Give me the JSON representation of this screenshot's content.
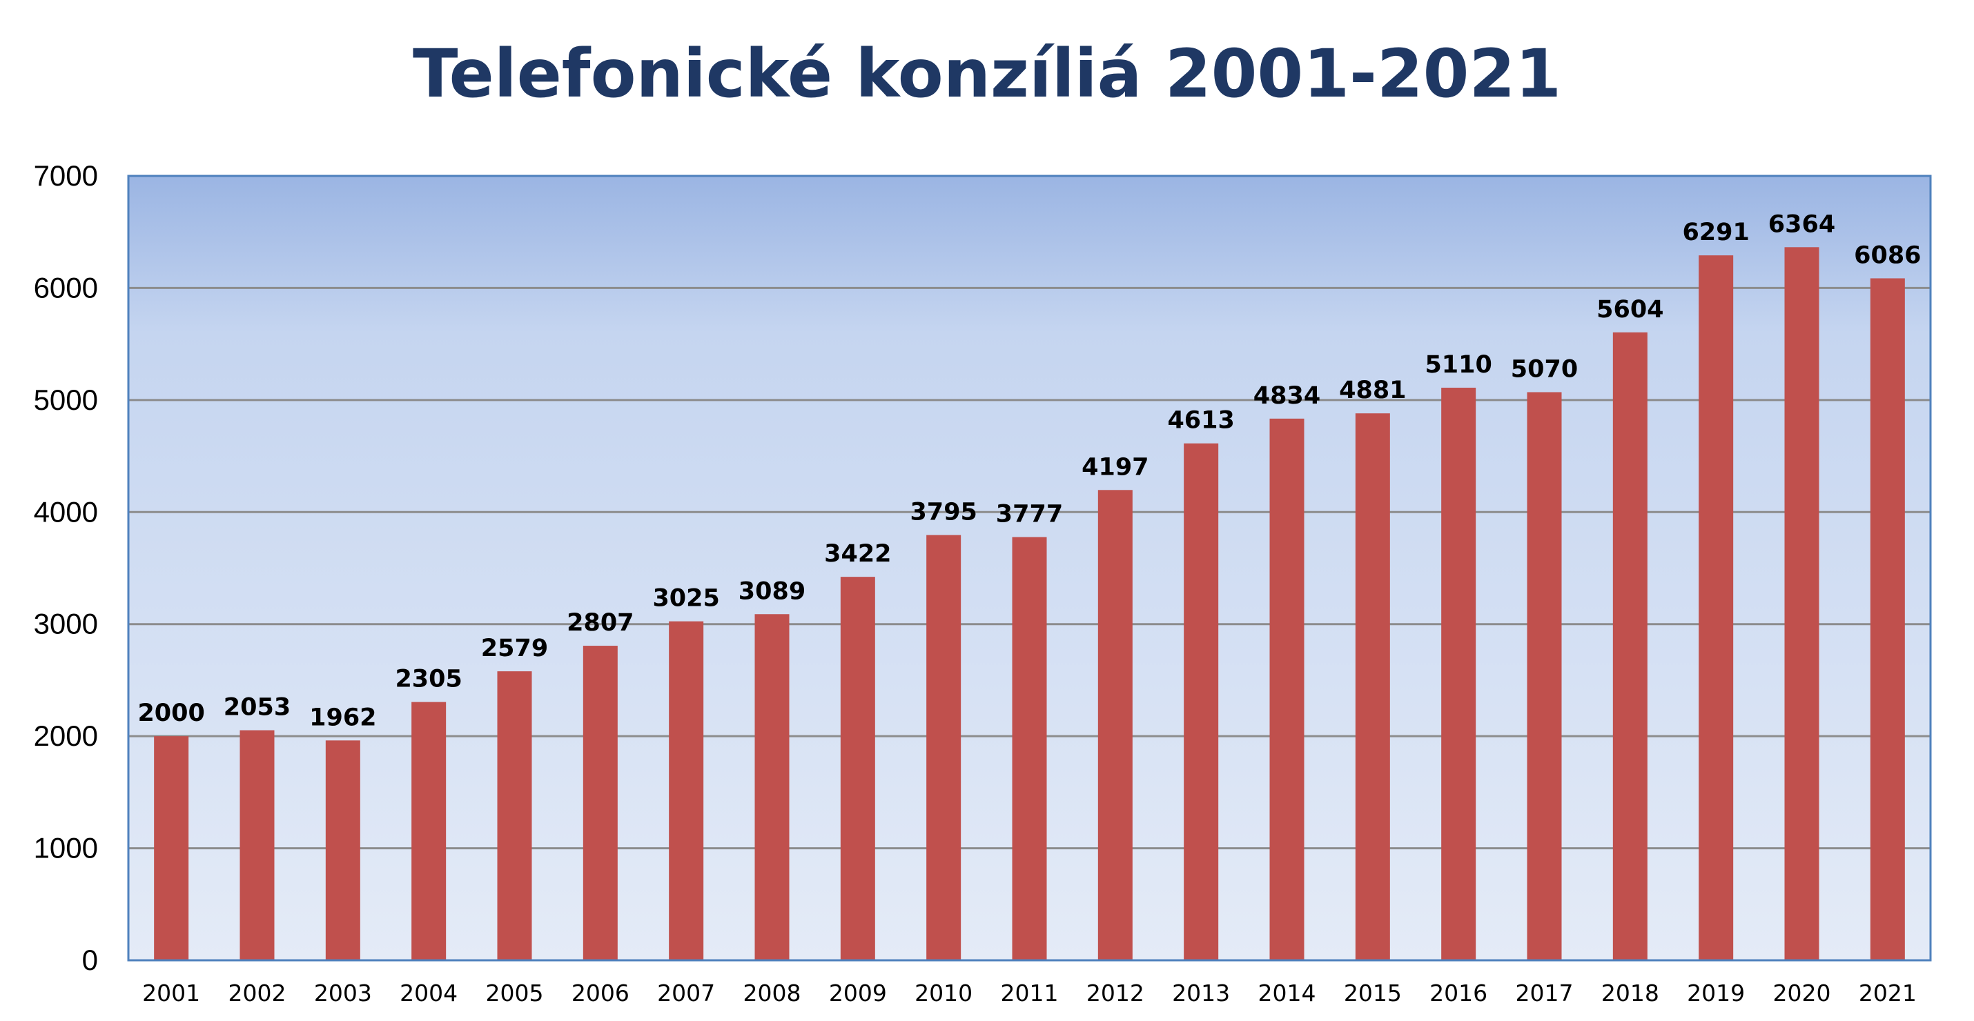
{
  "colors": {
    "title": "#1f3864",
    "bar": "#c0504d",
    "plot_top": "#9bb5e3",
    "plot_mid": "#c5d5f0",
    "plot_bottom": "#e4ebf7",
    "gridline": "#8c8c8c",
    "plot_border": "#4f81bd",
    "text": "#000000"
  },
  "chart_data": {
    "type": "bar",
    "title": "Telefonické konzíliá 2001-2021",
    "xlabel": "",
    "ylabel": "",
    "categories": [
      "2001",
      "2002",
      "2003",
      "2004",
      "2005",
      "2006",
      "2007",
      "2008",
      "2009",
      "2010",
      "2011",
      "2012",
      "2013",
      "2014",
      "2015",
      "2016",
      "2017",
      "2018",
      "2019",
      "2020",
      "2021"
    ],
    "values": [
      2000,
      2053,
      1962,
      2305,
      2579,
      2807,
      3025,
      3089,
      3422,
      3795,
      3777,
      4197,
      4613,
      4834,
      4881,
      5110,
      5070,
      5604,
      6291,
      6364,
      6086
    ],
    "ylim": [
      0,
      7000
    ],
    "yticks": [
      0,
      1000,
      2000,
      3000,
      4000,
      5000,
      6000,
      7000
    ],
    "grid": true,
    "legend": "none",
    "data_labels": true
  }
}
